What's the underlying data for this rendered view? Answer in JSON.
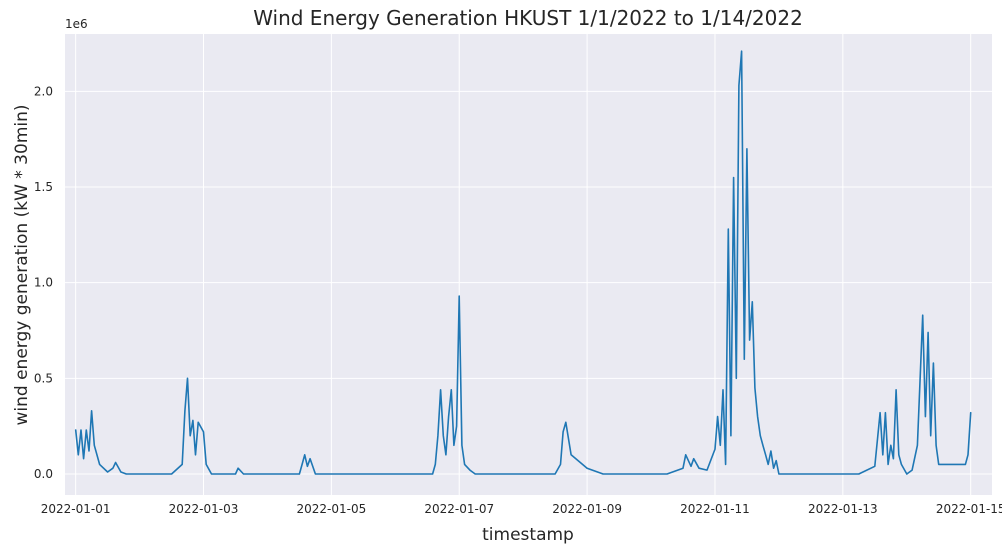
{
  "chart_data": {
    "type": "line",
    "title": "Wind Energy Generation HKUST 1/1/2022 to 1/14/2022",
    "xlabel": "timestamp",
    "ylabel": "wind energy generation (kW * 30min)",
    "y_offset_label": "1e6",
    "xlim": [
      "2021-12-31T20:00",
      "2022-01-15T08:00"
    ],
    "ylim": [
      -0.11,
      2.3
    ],
    "grid": true,
    "x_ticks": [
      {
        "value": "2022-01-01",
        "label": "2022-01-01"
      },
      {
        "value": "2022-01-03",
        "label": "2022-01-03"
      },
      {
        "value": "2022-01-05",
        "label": "2022-01-05"
      },
      {
        "value": "2022-01-07",
        "label": "2022-01-07"
      },
      {
        "value": "2022-01-09",
        "label": "2022-01-09"
      },
      {
        "value": "2022-01-11",
        "label": "2022-01-11"
      },
      {
        "value": "2022-01-13",
        "label": "2022-01-13"
      },
      {
        "value": "2022-01-15",
        "label": "2022-01-15"
      }
    ],
    "y_ticks": [
      {
        "value": 0.0,
        "label": "0.0"
      },
      {
        "value": 0.5,
        "label": "0.5"
      },
      {
        "value": 1.0,
        "label": "1.0"
      },
      {
        "value": 1.5,
        "label": "1.5"
      },
      {
        "value": 2.0,
        "label": "2.0"
      }
    ],
    "colors": {
      "series": "#1f77b4",
      "plot_background": "#eaeaf2",
      "grid": "#ffffff"
    },
    "series": [
      {
        "x": [
          "2022-01-01T00:00",
          "2022-01-01T01:00",
          "2022-01-01T02:00",
          "2022-01-01T03:00",
          "2022-01-01T04:00",
          "2022-01-01T05:00",
          "2022-01-01T06:00",
          "2022-01-01T07:00",
          "2022-01-01T09:00",
          "2022-01-01T12:00",
          "2022-01-01T14:00",
          "2022-01-01T15:00",
          "2022-01-01T17:00",
          "2022-01-01T19:00",
          "2022-01-02T01:00",
          "2022-01-02T07:00",
          "2022-01-02T12:00",
          "2022-01-02T16:00",
          "2022-01-02T17:00",
          "2022-01-02T18:00",
          "2022-01-02T19:00",
          "2022-01-02T20:00",
          "2022-01-02T21:00",
          "2022-01-02T22:00",
          "2022-01-03T00:00",
          "2022-01-03T01:00",
          "2022-01-03T03:00",
          "2022-01-03T06:00",
          "2022-01-03T10:00",
          "2022-01-03T12:00",
          "2022-01-03T13:00",
          "2022-01-03T15:00",
          "2022-01-03T19:00",
          "2022-01-04T06:00",
          "2022-01-04T12:00",
          "2022-01-04T13:00",
          "2022-01-04T14:00",
          "2022-01-04T15:00",
          "2022-01-04T16:00",
          "2022-01-04T18:00",
          "2022-01-04T20:00",
          "2022-01-04T23:00",
          "2022-01-05T00:00",
          "2022-01-05T01:00",
          "2022-01-05T03:00",
          "2022-01-05T06:00",
          "2022-01-05T07:00",
          "2022-01-05T08:00",
          "2022-01-05T10:00",
          "2022-01-05T14:00",
          "2022-01-05T22:00",
          "2022-01-06T05:00",
          "2022-01-06T07:00",
          "2022-01-06T08:00",
          "2022-01-06T09:00",
          "2022-01-06T10:00",
          "2022-01-06T11:00",
          "2022-01-06T12:00",
          "2022-01-06T13:00",
          "2022-01-06T14:00",
          "2022-01-06T15:00",
          "2022-01-06T16:00",
          "2022-01-06T17:00",
          "2022-01-06T18:00",
          "2022-01-06T19:00",
          "2022-01-06T20:00",
          "2022-01-06T21:00",
          "2022-01-06T22:00",
          "2022-01-06T23:00",
          "2022-01-07T00:00",
          "2022-01-07T01:00",
          "2022-01-07T02:00",
          "2022-01-07T04:00",
          "2022-01-07T06:00",
          "2022-01-07T09:00",
          "2022-01-07T12:00",
          "2022-01-07T18:00",
          "2022-01-08T02:00",
          "2022-01-08T06:00",
          "2022-01-08T12:00",
          "2022-01-08T14:00",
          "2022-01-08T15:00",
          "2022-01-08T16:00",
          "2022-01-08T18:00",
          "2022-01-09T00:00",
          "2022-01-09T06:00",
          "2022-01-09T12:00",
          "2022-01-09T16:00",
          "2022-01-09T18:00",
          "2022-01-10T00:00",
          "2022-01-10T06:00",
          "2022-01-10T12:00",
          "2022-01-10T13:00",
          "2022-01-10T15:00",
          "2022-01-10T16:00",
          "2022-01-10T18:00",
          "2022-01-10T21:00",
          "2022-01-11T00:00",
          "2022-01-11T01:00",
          "2022-01-11T02:00",
          "2022-01-11T03:00",
          "2022-01-11T04:00",
          "2022-01-11T05:00",
          "2022-01-11T06:00",
          "2022-01-11T07:00",
          "2022-01-11T08:00",
          "2022-01-11T09:00",
          "2022-01-11T10:00",
          "2022-01-11T11:00",
          "2022-01-11T12:00",
          "2022-01-11T13:00",
          "2022-01-11T14:00",
          "2022-01-11T15:00",
          "2022-01-11T16:00",
          "2022-01-11T17:00",
          "2022-01-11T18:00",
          "2022-01-11T19:00",
          "2022-01-11T20:00",
          "2022-01-11T21:00",
          "2022-01-11T22:00",
          "2022-01-11T23:00",
          "2022-01-12T00:00",
          "2022-01-12T02:00",
          "2022-01-12T04:00",
          "2022-01-12T06:00",
          "2022-01-12T08:00",
          "2022-01-12T10:00",
          "2022-01-12T12:00",
          "2022-01-12T14:00",
          "2022-01-12T16:00",
          "2022-01-12T18:00",
          "2022-01-13T00:00",
          "2022-01-13T06:00",
          "2022-01-13T12:00",
          "2022-01-13T14:00",
          "2022-01-13T15:00",
          "2022-01-13T16:00",
          "2022-01-13T17:00",
          "2022-01-13T18:00",
          "2022-01-13T19:00",
          "2022-01-13T20:00",
          "2022-01-13T21:00",
          "2022-01-13T22:00",
          "2022-01-14T00:00",
          "2022-01-14T02:00",
          "2022-01-14T04:00",
          "2022-01-14T06:00",
          "2022-01-14T07:00",
          "2022-01-14T08:00",
          "2022-01-14T09:00",
          "2022-01-14T10:00",
          "2022-01-14T11:00",
          "2022-01-14T12:00",
          "2022-01-14T14:00",
          "2022-01-14T16:00",
          "2022-01-14T18:00",
          "2022-01-14T20:00",
          "2022-01-14T22:00",
          "2022-01-14T23:00",
          "2022-01-15T00:00"
        ],
        "y": [
          0.23,
          0.1,
          0.23,
          0.08,
          0.23,
          0.12,
          0.33,
          0.15,
          0.05,
          0.01,
          0.03,
          0.06,
          0.01,
          0.0,
          0.0,
          0.0,
          0.0,
          0.05,
          0.33,
          0.5,
          0.2,
          0.28,
          0.1,
          0.27,
          0.22,
          0.05,
          0.0,
          0.0,
          0.0,
          0.0,
          0.03,
          0.0,
          0.0,
          0.0,
          0.0,
          0.05,
          0.1,
          0.04,
          0.08,
          0.0,
          0.0,
          0.0,
          0.0,
          0.0,
          0.0,
          0.0,
          0.0,
          0.0,
          0.0,
          0.0,
          0.0,
          0.0,
          0.0,
          0.0,
          0.0,
          0.0,
          0.0,
          0.0,
          0.0,
          0.0,
          0.05,
          0.2,
          0.44,
          0.2,
          0.1,
          0.3,
          0.44,
          0.15,
          0.25,
          0.93,
          0.15,
          0.05,
          0.02,
          0.0,
          0.0,
          0.0,
          0.0,
          0.0,
          0.0,
          0.0,
          0.05,
          0.22,
          0.27,
          0.1,
          0.03,
          0.0,
          0.0,
          0.0,
          0.0,
          0.0,
          0.0,
          0.03,
          0.1,
          0.04,
          0.08,
          0.03,
          0.02,
          0.13,
          0.3,
          0.15,
          0.44,
          0.05,
          1.28,
          0.2,
          1.55,
          0.5,
          2.03,
          2.21,
          0.6,
          1.7,
          0.7,
          0.9,
          0.45,
          0.3,
          0.2,
          0.15,
          0.1,
          0.05,
          0.12,
          0.03,
          0.07,
          0.0,
          0.0,
          0.0,
          0.0,
          0.0,
          0.0,
          0.0,
          0.0,
          0.0,
          0.0,
          0.0,
          0.0,
          0.04,
          0.32,
          0.1,
          0.32,
          0.05,
          0.15,
          0.08,
          0.44,
          0.1,
          0.05,
          0.0,
          0.02,
          0.15,
          0.83,
          0.3,
          0.74,
          0.2,
          0.58,
          0.15,
          0.05,
          0.05,
          0.05,
          0.05,
          0.05,
          0.05,
          0.1,
          0.32
        ]
      }
    ]
  }
}
